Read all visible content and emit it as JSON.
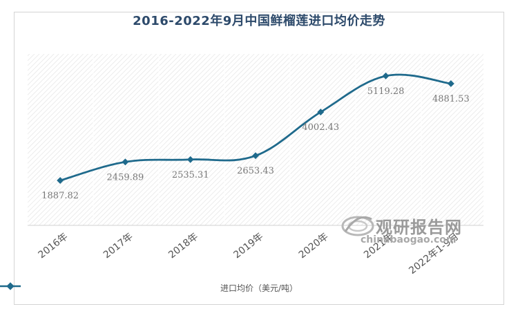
{
  "chart_data": {
    "type": "line",
    "title": "2016-2022年9月中国鲜榴莲进口均价走势",
    "categories": [
      "2016年",
      "2017年",
      "2018年",
      "2019年",
      "2020年",
      "2021年",
      "2022年1-9月"
    ],
    "series": [
      {
        "name": "进口均价（美元/吨）",
        "values": [
          1887.82,
          2459.89,
          2535.31,
          2653.43,
          4002.43,
          5119.28,
          4881.53
        ],
        "labels": [
          "1887.82",
          "2459.89",
          "2535.31",
          "2653.43",
          "4002.43",
          "5119.28",
          "4881.53"
        ]
      }
    ],
    "line_color": "#1f6a8c",
    "legend_position": "bottom",
    "grid": false,
    "smooth": true,
    "marker": "diamond"
  },
  "watermark": {
    "text": "观研报告网",
    "url": "chinabaogao.com"
  }
}
